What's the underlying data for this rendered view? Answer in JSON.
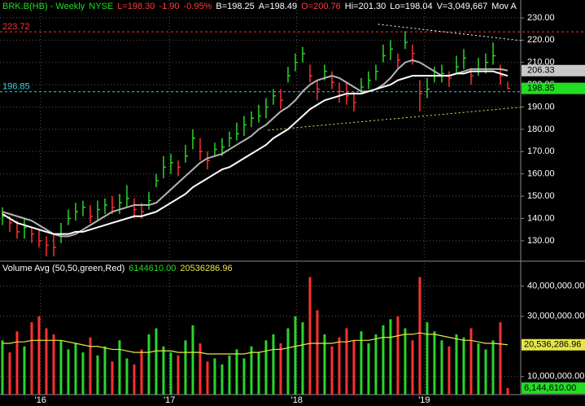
{
  "header": {
    "items": [
      {
        "text": "BRK.B(HB) - Weekly",
        "color": "#22dd22"
      },
      {
        "text": "NYSE",
        "color": "#22dd22"
      },
      {
        "text": "L=198.30",
        "color": "#ff3b3b"
      },
      {
        "text": "-1.90",
        "color": "#ff3b3b"
      },
      {
        "text": "-0.95%",
        "color": "#ff3b3b"
      },
      {
        "text": "B=198.25",
        "color": "#ffffff"
      },
      {
        "text": "A=198.49",
        "color": "#ffffff"
      },
      {
        "text": "O=200.76",
        "color": "#ff3b3b"
      },
      {
        "text": "Hi=201.30",
        "color": "#ffffff"
      },
      {
        "text": "Lo=198.04",
        "color": "#ffffff"
      },
      {
        "text": "V=3,049,667",
        "color": "#ffffff"
      },
      {
        "text": "Mov A",
        "color": "#ffffff"
      }
    ]
  },
  "chart_data": [
    {
      "type": "ohlc",
      "xlim": [
        -0.33,
        70.78
      ],
      "xticks": [
        {
          "value": 5.2,
          "label": "'16"
        },
        {
          "value": 22.8,
          "label": "'17"
        },
        {
          "value": 40.2,
          "label": "'18"
        },
        {
          "value": 57.6,
          "label": "'19"
        }
      ],
      "ylim": [
        121.2,
        238
      ],
      "yticks": [
        {
          "value": 130,
          "label": "130.00"
        },
        {
          "value": 140,
          "label": "140.00"
        },
        {
          "value": 150,
          "label": "150.00"
        },
        {
          "value": 160,
          "label": "160.00"
        },
        {
          "value": 170,
          "label": "170.00"
        },
        {
          "value": 180,
          "label": "180.00"
        },
        {
          "value": 190,
          "label": "190.00"
        },
        {
          "value": 200,
          "label": "200.00"
        },
        {
          "value": 210,
          "label": "210.00"
        },
        {
          "value": 220,
          "label": "220.00"
        },
        {
          "value": 230,
          "label": "230.00"
        }
      ],
      "grid": true,
      "up_color": "#2bd42b",
      "down_color": "#ff3030",
      "close": [
        141,
        138,
        134,
        136,
        133,
        130,
        128,
        127,
        133,
        140,
        143,
        145,
        141,
        144,
        146,
        145,
        147,
        149,
        144,
        143,
        148,
        157,
        163,
        165,
        163,
        168,
        176,
        170,
        166,
        171,
        172,
        176,
        178,
        182,
        185,
        186,
        190,
        195,
        193,
        204,
        210,
        214,
        204,
        198,
        206,
        201,
        197,
        195,
        192,
        199,
        202,
        206,
        213,
        216,
        211,
        219,
        214,
        196,
        198,
        204,
        205,
        203,
        208,
        212,
        204,
        207,
        210,
        213,
        204,
        198.3
      ],
      "high": [
        145,
        141,
        139,
        140,
        136,
        135,
        132,
        133,
        138,
        144,
        147,
        148,
        146,
        148,
        149,
        150,
        151,
        155,
        149,
        147,
        152,
        160,
        168,
        169,
        166,
        173,
        180,
        176,
        170,
        174,
        176,
        179,
        183,
        186,
        188,
        191,
        194,
        198,
        198,
        208,
        214,
        217,
        209,
        202,
        209,
        206,
        201,
        201,
        197,
        203,
        206,
        209,
        218,
        220,
        214,
        224,
        218,
        202,
        203,
        208,
        209,
        206,
        213,
        216,
        207,
        212,
        214,
        219,
        209,
        201.3
      ],
      "low": [
        137,
        134,
        131,
        131,
        129,
        127,
        123,
        123,
        129,
        137,
        139,
        141,
        138,
        139,
        142,
        142,
        142,
        145,
        140,
        140,
        144,
        154,
        158,
        160,
        159,
        165,
        171,
        166,
        162,
        168,
        168,
        172,
        175,
        177,
        181,
        183,
        185,
        191,
        189,
        201,
        206,
        210,
        201,
        193,
        202,
        198,
        192,
        191,
        188,
        196,
        198,
        202,
        210,
        211,
        207,
        216,
        209,
        188,
        194,
        201,
        201,
        199,
        205,
        207,
        200,
        204,
        205,
        209,
        200,
        198.04
      ],
      "lines": [
        {
          "color": "#b4b4b4",
          "values": [
            143,
            142,
            141,
            140,
            139,
            137,
            135,
            133,
            132,
            132,
            133,
            135,
            137,
            139,
            141,
            143,
            144,
            145,
            146,
            146,
            146,
            147,
            150,
            153,
            156,
            159,
            162,
            165,
            167,
            168,
            169,
            171,
            173,
            175,
            177,
            180,
            182,
            185,
            188,
            190,
            193,
            197,
            200,
            202,
            203,
            204,
            203,
            201,
            199,
            197,
            197,
            198,
            200,
            203,
            207,
            210,
            211,
            210,
            208,
            206,
            204,
            204,
            205,
            206,
            207,
            207,
            207,
            207,
            207,
            206.33
          ]
        },
        {
          "color": "#ffffff",
          "values": [
            142,
            140,
            138,
            137,
            136,
            135,
            134,
            133,
            133,
            133,
            134,
            134,
            135,
            136,
            137,
            138,
            139,
            140,
            141,
            141,
            142,
            143,
            145,
            147,
            149,
            151,
            154,
            156,
            158,
            160,
            162,
            163,
            165,
            167,
            169,
            171,
            173,
            176,
            178,
            180,
            183,
            186,
            189,
            191,
            193,
            194,
            195,
            196,
            196,
            196,
            197,
            198,
            199,
            200,
            202,
            203,
            204,
            204,
            204,
            204,
            204,
            204,
            205,
            205,
            206,
            206,
            206,
            206,
            205,
            204
          ]
        }
      ],
      "hlines": [
        {
          "value": 223.72,
          "color": "#ff3030"
        },
        {
          "value": 196.85,
          "color": "#33d6e6"
        }
      ],
      "trendlines": [
        {
          "color": "#ffffff",
          "x": [
            51.3,
            70.78
          ],
          "y": [
            227.1,
            219.8
          ]
        },
        {
          "color": "#e6e64a",
          "x": [
            36.3,
            70.78
          ],
          "y": [
            179.6,
            189.9
          ]
        }
      ],
      "price_markers": [
        {
          "value": 206.33,
          "color": "#c8c8c8"
        },
        {
          "value": 198.35,
          "color": "#22dd22"
        }
      ]
    },
    {
      "type": "bar",
      "legend": [
        {
          "text": "Volume Avg (50,50,green,Red)",
          "color": "#ffffff"
        },
        {
          "text": "6144610.00",
          "color": "#22dd22"
        },
        {
          "text": "20536286.96",
          "color": "#e6e64a"
        }
      ],
      "ylim": [
        4000000,
        48000000
      ],
      "yticks": [
        {
          "value": 10000000,
          "label": "10,000,000.00"
        },
        {
          "value": 30000000,
          "label": "30,000,000.00"
        },
        {
          "value": 40000000,
          "label": "40,000,000.00"
        }
      ],
      "values": [
        22000000,
        18000000,
        25000000,
        20000000,
        28000000,
        30000000,
        26000000,
        24000000,
        22000000,
        19000000,
        21000000,
        18000000,
        23000000,
        17000000,
        20000000,
        15000000,
        22000000,
        16000000,
        14000000,
        19000000,
        24000000,
        26000000,
        20000000,
        18000000,
        17000000,
        22000000,
        27000000,
        21000000,
        15000000,
        16000000,
        14000000,
        17000000,
        19000000,
        16000000,
        20000000,
        18000000,
        22000000,
        24000000,
        21000000,
        26000000,
        30000000,
        28000000,
        43000000,
        32000000,
        24000000,
        20000000,
        23000000,
        26000000,
        22000000,
        25000000,
        21000000,
        24000000,
        27000000,
        29000000,
        30000000,
        26000000,
        22000000,
        43000000,
        28000000,
        25000000,
        22000000,
        20000000,
        24000000,
        23000000,
        26000000,
        21000000,
        19000000,
        22000000,
        28000000,
        6144610
      ],
      "avg_color": "#e6e64a",
      "avg": [
        21000000,
        21000000,
        21500000,
        21500000,
        22000000,
        22000000,
        22000000,
        22000000,
        22000000,
        21500000,
        21000000,
        20500000,
        20000000,
        20000000,
        19500000,
        19000000,
        19000000,
        18500000,
        18000000,
        18000000,
        18000000,
        18500000,
        18500000,
        18500000,
        18000000,
        18000000,
        18000000,
        18000000,
        17500000,
        17500000,
        17500000,
        17500000,
        17500000,
        17500000,
        18000000,
        18000000,
        18500000,
        19000000,
        19000000,
        19500000,
        20000000,
        20500000,
        21000000,
        21000000,
        21000000,
        21000000,
        21500000,
        21500000,
        22000000,
        22000000,
        22000000,
        22500000,
        23000000,
        23000000,
        23500000,
        24000000,
        24000000,
        24500000,
        24000000,
        24000000,
        23500000,
        23000000,
        22500000,
        22000000,
        22000000,
        21500000,
        21000000,
        21000000,
        20800000,
        20536286.96
      ],
      "markers": [
        {
          "value": 20536286.96,
          "label": "20,536,286.96",
          "color": "#e6e64a"
        },
        {
          "value": 6144610,
          "label": "6,144,610.00",
          "color": "#22dd22"
        }
      ]
    }
  ]
}
